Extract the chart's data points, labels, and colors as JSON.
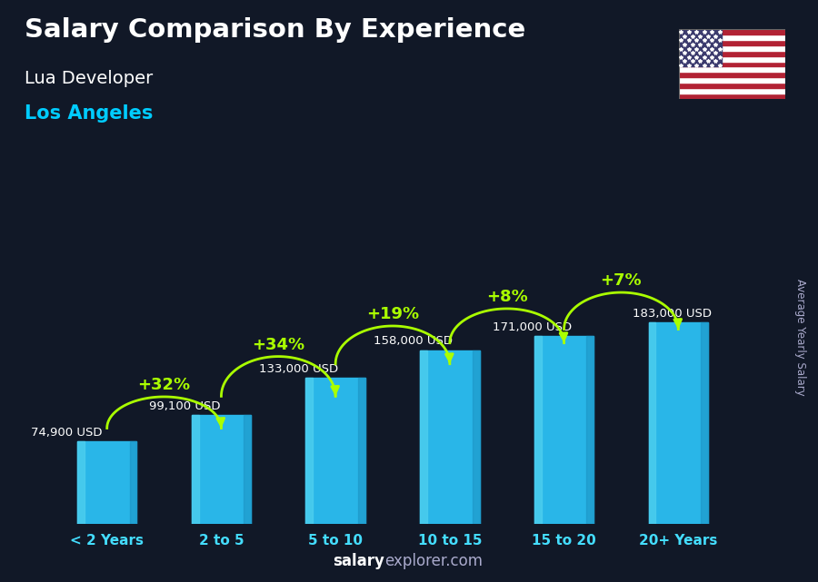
{
  "title": "Salary Comparison By Experience",
  "subtitle1": "Lua Developer",
  "subtitle2": "Los Angeles",
  "ylabel": "Average Yearly Salary",
  "categories": [
    "< 2 Years",
    "2 to 5",
    "5 to 10",
    "10 to 15",
    "15 to 20",
    "20+ Years"
  ],
  "values": [
    74900,
    99100,
    133000,
    158000,
    171000,
    183000
  ],
  "value_labels": [
    "74,900 USD",
    "99,100 USD",
    "133,000 USD",
    "158,000 USD",
    "171,000 USD",
    "183,000 USD"
  ],
  "pct_changes": [
    "+32%",
    "+34%",
    "+19%",
    "+8%",
    "+7%"
  ],
  "bar_color_main": "#29b6e8",
  "bar_color_left": "#4dcfee",
  "bar_color_dark": "#1a90c0",
  "bg_color": "#111827",
  "title_color": "#ffffff",
  "subtitle1_color": "#ffffff",
  "subtitle2_color": "#00ccff",
  "value_label_color": "#ffffff",
  "pct_color": "#aaff00",
  "arrow_color": "#aaff00",
  "xtick_color": "#44ddff",
  "watermark_bold": "salary",
  "watermark_normal": "explorer.com",
  "watermark_color": "#aaaacc",
  "footer_bold_color": "#ffffff",
  "footer_normal_color": "#aaaacc"
}
